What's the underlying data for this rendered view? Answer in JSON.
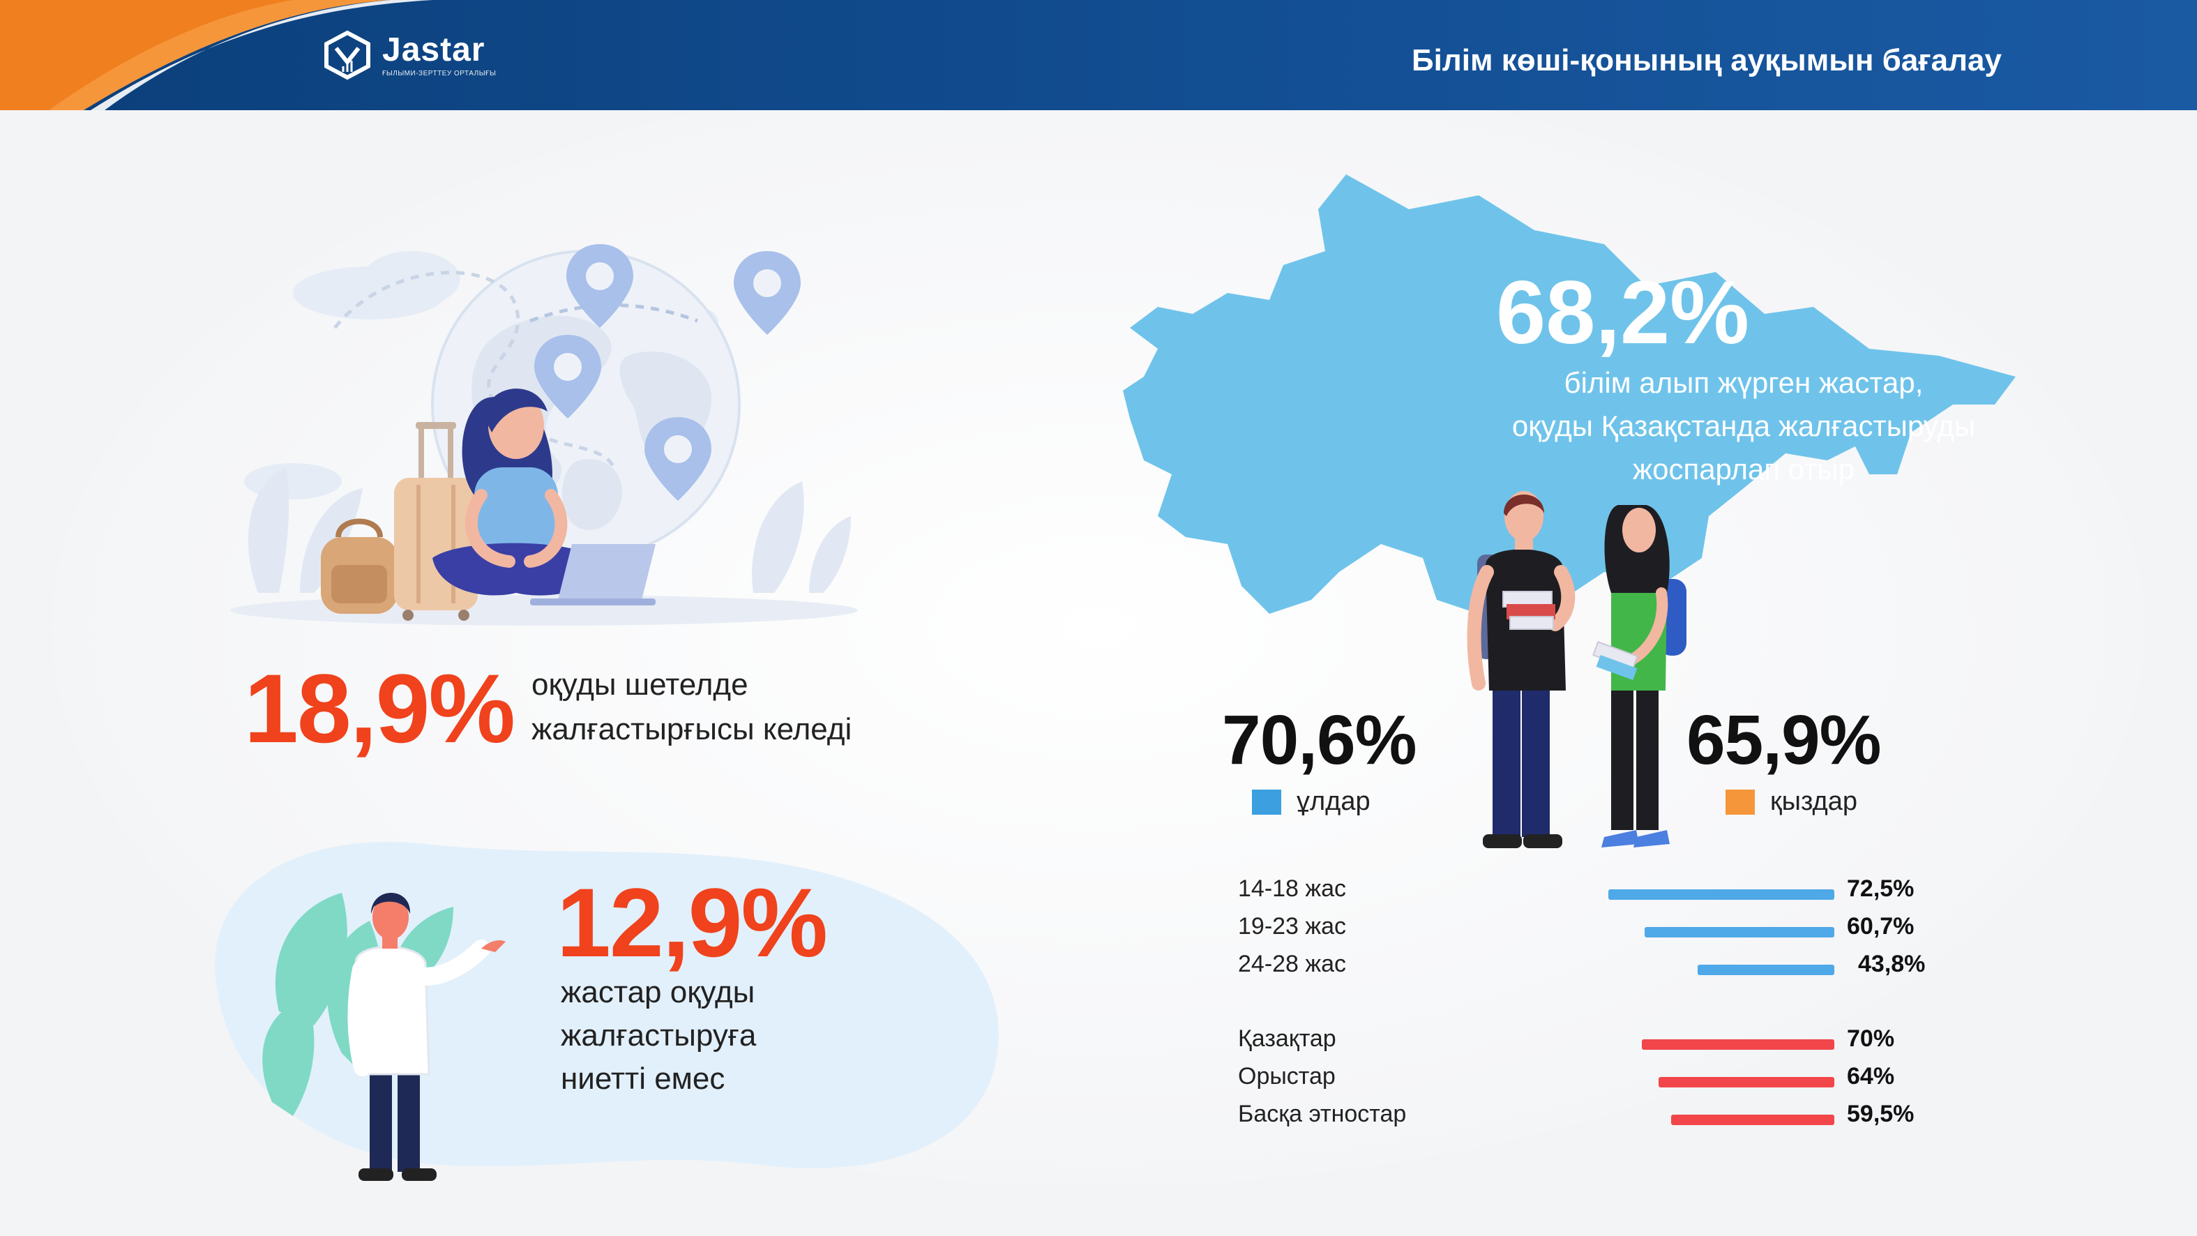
{
  "header": {
    "logo_name": "Jastar",
    "logo_sub": "ҒЫЛЫМИ-ЗЕРТТЕУ ОРТАЛЫҒЫ",
    "title": "Білім көші-қонының ауқымын бағалау"
  },
  "left": {
    "abroad": {
      "value": "18,9%",
      "text_line1": "оқуды шетелде",
      "text_line2": "жалғастырғысы келеді"
    },
    "no_intent": {
      "value": "12,9%",
      "text_line1": "жастар оқуды",
      "text_line2": "жалғастыруға",
      "text_line3": "ниетті емес"
    }
  },
  "right": {
    "main": {
      "value": "68,2%",
      "text_line1": "білім алып жүрген жастар,",
      "text_line2": "оқуды Қазақстанда жалғастыруды",
      "text_line3": "жоспарлап отыр"
    },
    "boys": {
      "value": "70,6%",
      "label": "ұлдар",
      "color": "#3b9fe0"
    },
    "girls": {
      "value": "65,9%",
      "label": "қыздар",
      "color": "#f6963a"
    },
    "age_bars": [
      {
        "label": "14-18 жас",
        "value": "72,5%",
        "pct": 72.5
      },
      {
        "label": "19-23 жас",
        "value": "60,7%",
        "pct": 60.7
      },
      {
        "label": "24-28 жас",
        "value": "43,8%",
        "pct": 43.8
      }
    ],
    "ethnic_bars": [
      {
        "label": "Қазақтар",
        "value": "70%",
        "pct": 70
      },
      {
        "label": "Орыстар",
        "value": "64%",
        "pct": 64
      },
      {
        "label": "Басқа этностар",
        "value": "59,5%",
        "pct": 59.5
      }
    ],
    "age_color": "#4fa8e8",
    "ethnic_color": "#f2464a"
  }
}
